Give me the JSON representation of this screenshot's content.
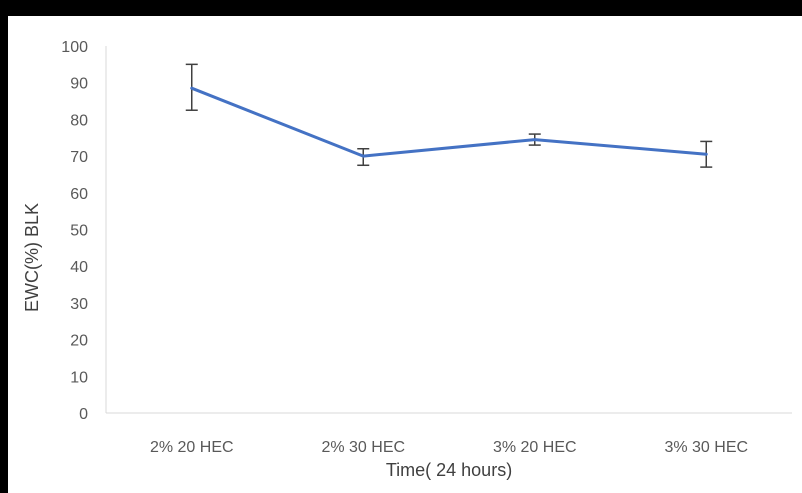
{
  "chart_data": {
    "type": "line",
    "categories": [
      "2% 20 HEC",
      "2% 30 HEC",
      "3% 20 HEC",
      "3% 30 HEC"
    ],
    "series": [
      {
        "values": [
          88.5,
          70,
          74.5,
          70.5
        ],
        "error_low": [
          82.5,
          67.5,
          73,
          67
        ],
        "error_high": [
          95,
          72,
          76,
          74
        ]
      }
    ],
    "xlabel": "Time( 24 hours)",
    "ylabel": "EWC(%) BLK",
    "ylim": [
      0,
      100
    ],
    "yticks": [
      0,
      10,
      20,
      30,
      40,
      50,
      60,
      70,
      80,
      90,
      100
    ],
    "grid": false,
    "line_color": "#4472C4",
    "errorbar_color": "#404040",
    "axis_color": "#D9D9D9"
  }
}
